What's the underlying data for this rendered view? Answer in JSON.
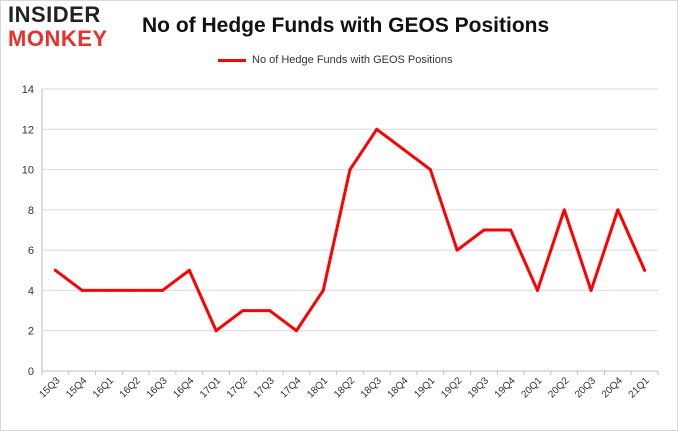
{
  "logo": {
    "line1": "INSIDER",
    "line2": "MONKEY"
  },
  "chart_data": {
    "type": "line",
    "title": "No of Hedge Funds with GEOS Positions",
    "legend": "No of Hedge Funds with GEOS Positions",
    "legend_position": "top-center",
    "xlabel": "",
    "ylabel": "",
    "ylim": [
      0,
      14
    ],
    "yticks": [
      0,
      2,
      4,
      6,
      8,
      10,
      12,
      14
    ],
    "grid": "horizontal",
    "categories": [
      "15Q3",
      "15Q4",
      "16Q1",
      "16Q2",
      "16Q3",
      "16Q4",
      "17Q1",
      "17Q2",
      "17Q3",
      "17Q4",
      "18Q1",
      "18Q2",
      "18Q3",
      "18Q4",
      "19Q1",
      "19Q2",
      "19Q3",
      "19Q4",
      "20Q1",
      "20Q2",
      "20Q3",
      "20Q4",
      "21Q1"
    ],
    "series": [
      {
        "name": "No of Hedge Funds with GEOS Positions",
        "color": "#ff0000",
        "values": [
          5,
          4,
          4,
          4,
          4,
          5,
          2,
          3,
          3,
          2,
          4,
          10,
          12,
          11,
          10,
          6,
          7,
          7,
          4,
          8,
          4,
          8,
          5
        ]
      }
    ]
  }
}
